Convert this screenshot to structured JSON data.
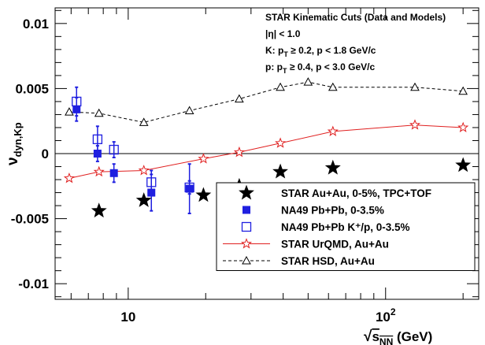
{
  "chart_data": {
    "type": "scatter",
    "xlabel_prefix": "√",
    "xlabel_s": "s",
    "xlabel_sub": "NN",
    "xlabel_suffix": " (GeV)",
    "ylabel_main": "ν",
    "ylabel_sub": "dyn,Kp",
    "x_scale": "log",
    "xlim": [
      5.2,
      230
    ],
    "ylim": [
      -0.0112,
      0.0112
    ],
    "x_tick_labels": [
      {
        "value": 10,
        "base": "10",
        "exp": ""
      },
      {
        "value": 100,
        "base": "10",
        "exp": "2"
      }
    ],
    "y_tick_labels": [
      {
        "value": 0.01,
        "label": "0.01"
      },
      {
        "value": 0.005,
        "label": "0.005"
      },
      {
        "value": 0,
        "label": "0"
      },
      {
        "value": -0.005,
        "label": "-0.005"
      },
      {
        "value": -0.01,
        "label": "-0.01"
      }
    ],
    "annotations": [
      "STAR Kinematic Cuts (Data and Models)",
      "|η| < 1.0",
      {
        "pre": "K: p",
        "sub": "T",
        "post": " ≥ 0.2, p < 1.8 GeV/c"
      },
      {
        "pre": "p: p",
        "sub": "T",
        "post": " ≥ 0.4, p < 3.0 GeV/c"
      }
    ],
    "series": [
      {
        "name": "STAR Au+Au, 0-5%, TPC+TOF",
        "color": "#000000",
        "marker": "star-filled",
        "x": [
          7.7,
          11.5,
          19.6,
          27,
          39,
          62.4,
          200
        ],
        "y": [
          -0.0044,
          -0.0036,
          -0.0032,
          -0.0025,
          -0.0014,
          -0.0011,
          -0.0009
        ]
      },
      {
        "name": "NA49 Pb+Pb, 0-3.5%",
        "color": "#1f1fe0",
        "marker": "square-filled",
        "x": [
          6.3,
          7.6,
          8.8,
          12.3,
          17.3
        ],
        "y": [
          0.0034,
          0.0,
          -0.0015,
          -0.003,
          -0.0027
        ],
        "yerr": [
          0.0009,
          0.0006,
          0.0007,
          0.0014,
          0.0019
        ]
      },
      {
        "name": "NA49 Pb+Pb K⁺/p, 0-3.5%",
        "color": "#1f1fe0",
        "marker": "square-open",
        "x": [
          6.3,
          7.6,
          8.8,
          12.3,
          17.3
        ],
        "y": [
          0.004,
          0.0011,
          0.0003,
          -0.0022,
          -0.0026
        ],
        "yerr": [
          0.0011,
          0.001,
          0.0006,
          0.0009,
          0.0005
        ]
      },
      {
        "name": "STAR UrQMD, Au+Au",
        "color": "#e02020",
        "marker": "star-open",
        "line": "solid",
        "x": [
          5.9,
          7.7,
          11.5,
          19.6,
          27,
          39,
          62.4,
          130,
          200
        ],
        "y": [
          -0.0019,
          -0.0014,
          -0.0013,
          -0.0004,
          0.0001,
          0.0008,
          0.0017,
          0.0022,
          0.002
        ]
      },
      {
        "name": "STAR HSD, Au+Au",
        "color": "#000000",
        "marker": "triangle-open",
        "line": "dashed",
        "x": [
          5.9,
          7.7,
          11.5,
          17.3,
          27,
          39,
          50,
          62.4,
          130,
          200
        ],
        "y": [
          0.0032,
          0.0031,
          0.0024,
          0.0033,
          0.0042,
          0.0051,
          0.0055,
          0.0051,
          0.0051,
          0.0048
        ]
      }
    ]
  }
}
